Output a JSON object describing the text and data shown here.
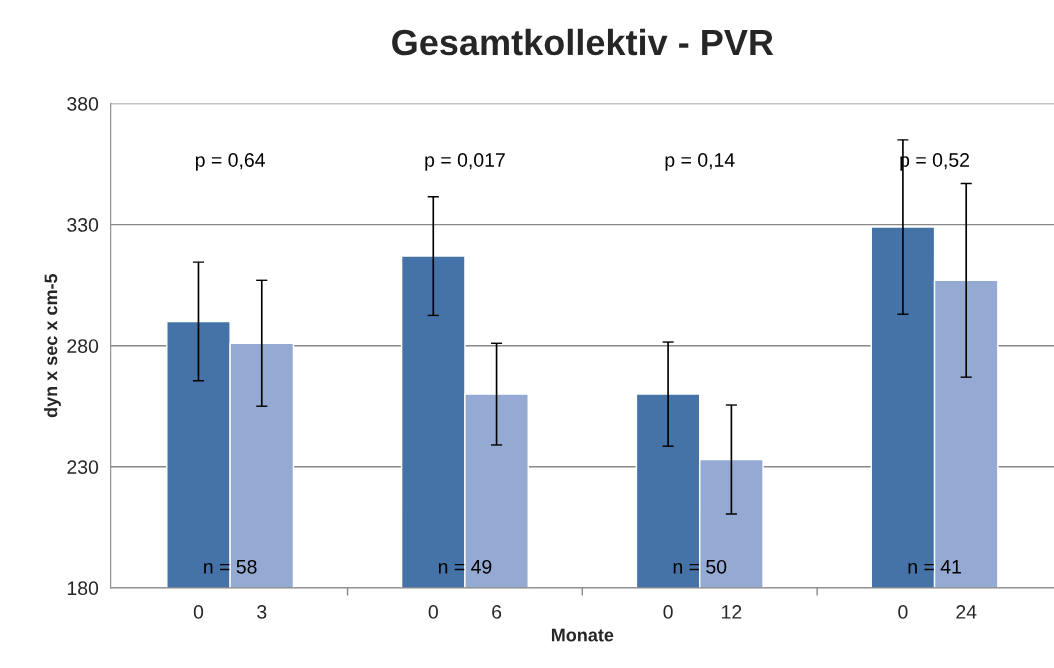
{
  "chart_data": {
    "type": "bar",
    "title": "Gesamtkollektiv - PVR",
    "xlabel": "Monate",
    "ylabel": "dyn x sec x cm-5",
    "categories": [
      "0",
      "3",
      "0",
      "6",
      "0",
      "12",
      "0",
      "24"
    ],
    "values": [
      290,
      281,
      317,
      260,
      260,
      233,
      329,
      307
    ],
    "errors": [
      24.5,
      26,
      24.5,
      21,
      21.5,
      22.5,
      36,
      40
    ],
    "colors": [
      "#4573a7",
      "#94aad2",
      "#4573a7",
      "#94aad2",
      "#4573a7",
      "#94aad2",
      "#4573a7",
      "#94aad2"
    ],
    "ylim": [
      180,
      380
    ],
    "yticks": [
      180,
      230,
      280,
      330,
      380
    ],
    "grid": "y",
    "annotations": [
      "p = 0,64",
      "p = 0,017",
      "p = 0,14",
      "p = 0,52",
      "n = 58",
      "n = 49",
      "n = 50",
      "n = 41"
    ]
  }
}
